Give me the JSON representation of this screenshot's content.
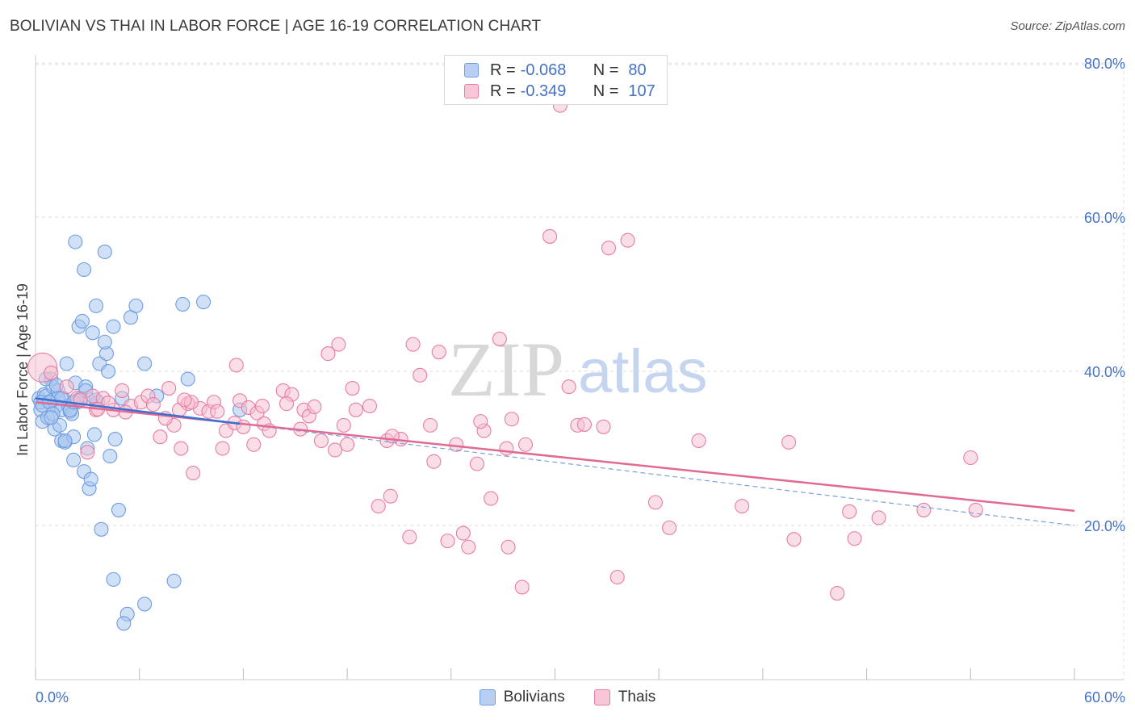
{
  "title": "BOLIVIAN VS THAI IN LABOR FORCE | AGE 16-19 CORRELATION CHART",
  "source": "Source: ZipAtlas.com",
  "watermark": {
    "zip": "ZIP",
    "atlas": "atlas"
  },
  "colors": {
    "bolivian": "#6f9de0",
    "bolivian_fill": "#aac6ef",
    "thai": "#e87da3",
    "thai_fill": "#f6bdd0",
    "axis_text": "#4472c4",
    "grid": "#dddddd"
  },
  "legend": {
    "rows": [
      {
        "r_label": "R =",
        "r_value": "-0.068",
        "n_label": "N =",
        "n_value": "80"
      },
      {
        "r_label": "R =",
        "r_value": "-0.349",
        "n_label": "N =",
        "n_value": "107"
      }
    ]
  },
  "bottom_legend": {
    "bolivians": "Bolivians",
    "thais": "Thais"
  },
  "chart_data": {
    "type": "scatter",
    "title": "BOLIVIAN VS THAI IN LABOR FORCE | AGE 16-19 CORRELATION CHART",
    "xlabel": "",
    "ylabel": "In Labor Force | Age 16-19",
    "xlim": [
      0,
      60
    ],
    "ylim": [
      0,
      82
    ],
    "x_tick_labels": [
      "0.0%",
      "60.0%"
    ],
    "y_ticks": [
      20,
      40,
      60,
      80
    ],
    "y_tick_labels": [
      "20.0%",
      "40.0%",
      "60.0%",
      "80.0%"
    ],
    "grid": true,
    "series": [
      {
        "name": "Bolivians",
        "points": [
          [
            0.2,
            36.5
          ],
          [
            0.3,
            35
          ],
          [
            0.4,
            33.5
          ],
          [
            0.5,
            37
          ],
          [
            0.6,
            36.8
          ],
          [
            0.7,
            34
          ],
          [
            0.8,
            36
          ],
          [
            0.9,
            39
          ],
          [
            1.0,
            38
          ],
          [
            1.0,
            36.3
          ],
          [
            1.1,
            32.5
          ],
          [
            1.2,
            35.5
          ],
          [
            1.3,
            37.5
          ],
          [
            1.4,
            33
          ],
          [
            1.5,
            35
          ],
          [
            1.5,
            31
          ],
          [
            1.6,
            36.5
          ],
          [
            1.7,
            30.8
          ],
          [
            1.8,
            41
          ],
          [
            1.9,
            35.5
          ],
          [
            2.0,
            34.8
          ],
          [
            2.1,
            34.5
          ],
          [
            2.2,
            31.5
          ],
          [
            2.2,
            28.5
          ],
          [
            2.3,
            38.5
          ],
          [
            2.4,
            36
          ],
          [
            2.5,
            45.8
          ],
          [
            2.6,
            36.5
          ],
          [
            2.7,
            46.5
          ],
          [
            2.8,
            27
          ],
          [
            2.9,
            38
          ],
          [
            3.0,
            36.5
          ],
          [
            3.0,
            30
          ],
          [
            3.1,
            24.8
          ],
          [
            3.2,
            26
          ],
          [
            3.3,
            45
          ],
          [
            3.4,
            31.8
          ],
          [
            3.5,
            48.5
          ],
          [
            3.6,
            36
          ],
          [
            3.7,
            41
          ],
          [
            3.8,
            19.5
          ],
          [
            4.0,
            55.5
          ],
          [
            4.1,
            42.3
          ],
          [
            4.2,
            40
          ],
          [
            4.3,
            29
          ],
          [
            4.5,
            45.8
          ],
          [
            4.6,
            31.2
          ],
          [
            4.8,
            22
          ],
          [
            5.0,
            36.5
          ],
          [
            5.5,
            47
          ],
          [
            5.8,
            48.5
          ],
          [
            6.3,
            41
          ],
          [
            7.0,
            36.8
          ],
          [
            8.5,
            48.7
          ],
          [
            8.8,
            39
          ],
          [
            9.7,
            49
          ],
          [
            2.3,
            56.8
          ],
          [
            2.8,
            53.2
          ],
          [
            0.6,
            39
          ],
          [
            0.3,
            36
          ],
          [
            4.0,
            43.8
          ],
          [
            4.5,
            13
          ],
          [
            5.3,
            8.5
          ],
          [
            5.1,
            7.3
          ],
          [
            6.3,
            9.8
          ],
          [
            8.0,
            12.8
          ],
          [
            0.4,
            35.6
          ],
          [
            1.3,
            36.5
          ],
          [
            2.4,
            36.2
          ],
          [
            1.7,
            31
          ],
          [
            11.8,
            35
          ],
          [
            2.9,
            37.5
          ],
          [
            1.2,
            38.2
          ],
          [
            0.8,
            36
          ],
          [
            2.0,
            35
          ],
          [
            1.5,
            36.5
          ],
          [
            1.0,
            34.5
          ],
          [
            2.2,
            36
          ],
          [
            0.9,
            34
          ],
          [
            3.5,
            36.3
          ]
        ]
      },
      {
        "name": "Thais",
        "points": [
          [
            0.4,
            40.5
          ],
          [
            0.9,
            39.8
          ],
          [
            1.8,
            38
          ],
          [
            2.4,
            36.5
          ],
          [
            2.6,
            36.3
          ],
          [
            3.0,
            29.5
          ],
          [
            3.3,
            36.8
          ],
          [
            3.5,
            35
          ],
          [
            3.9,
            36.5
          ],
          [
            4.5,
            35
          ],
          [
            5.0,
            37.5
          ],
          [
            5.5,
            35.5
          ],
          [
            6.1,
            36
          ],
          [
            6.5,
            36.8
          ],
          [
            7.2,
            31.5
          ],
          [
            7.7,
            37.8
          ],
          [
            8.0,
            33
          ],
          [
            8.4,
            30
          ],
          [
            8.8,
            35.8
          ],
          [
            9.1,
            26.8
          ],
          [
            9.5,
            35.2
          ],
          [
            10.0,
            34.8
          ],
          [
            10.3,
            36
          ],
          [
            10.5,
            34.8
          ],
          [
            11.0,
            32.3
          ],
          [
            11.5,
            33.3
          ],
          [
            11.6,
            40.8
          ],
          [
            11.8,
            36.2
          ],
          [
            12.3,
            35.3
          ],
          [
            12.6,
            30.5
          ],
          [
            12.8,
            34.6
          ],
          [
            13.2,
            33.2
          ],
          [
            13.5,
            32.3
          ],
          [
            14.3,
            37.5
          ],
          [
            14.8,
            37
          ],
          [
            15.5,
            35
          ],
          [
            15.8,
            34.2
          ],
          [
            16.5,
            31
          ],
          [
            16.9,
            42.3
          ],
          [
            17.3,
            29.8
          ],
          [
            17.5,
            43.5
          ],
          [
            17.8,
            33
          ],
          [
            18.3,
            37.8
          ],
          [
            18.5,
            35
          ],
          [
            19.3,
            35.5
          ],
          [
            19.8,
            22.5
          ],
          [
            20.3,
            31
          ],
          [
            20.5,
            23.8
          ],
          [
            21.1,
            31.2
          ],
          [
            21.6,
            18.5
          ],
          [
            21.8,
            43.5
          ],
          [
            22.2,
            39.5
          ],
          [
            23.0,
            28.3
          ],
          [
            23.3,
            42.5
          ],
          [
            23.8,
            18
          ],
          [
            24.3,
            30.5
          ],
          [
            24.7,
            19
          ],
          [
            25.0,
            17.2
          ],
          [
            25.9,
            32.3
          ],
          [
            26.3,
            23.5
          ],
          [
            27.2,
            30
          ],
          [
            27.5,
            33.8
          ],
          [
            27.3,
            17.2
          ],
          [
            28.1,
            12
          ],
          [
            28.3,
            30.5
          ],
          [
            29.7,
            57.5
          ],
          [
            30.3,
            74.5
          ],
          [
            30.8,
            38
          ],
          [
            31.3,
            33
          ],
          [
            32.8,
            32.8
          ],
          [
            33.1,
            56
          ],
          [
            33.6,
            13.3
          ],
          [
            34.2,
            57
          ],
          [
            35.8,
            23
          ],
          [
            36.6,
            19.7
          ],
          [
            38.3,
            31
          ],
          [
            40.8,
            22.5
          ],
          [
            43.5,
            30.8
          ],
          [
            43.8,
            18.2
          ],
          [
            46.3,
            11.2
          ],
          [
            47.0,
            21.8
          ],
          [
            47.3,
            18.3
          ],
          [
            48.7,
            21
          ],
          [
            51.3,
            22
          ],
          [
            54.0,
            28.8
          ],
          [
            54.3,
            22
          ],
          [
            10.8,
            30
          ],
          [
            8.3,
            35
          ],
          [
            13.1,
            35.5
          ],
          [
            9.0,
            36
          ],
          [
            5.2,
            34.7
          ],
          [
            6.8,
            35.7
          ],
          [
            26.8,
            44.2
          ],
          [
            31.7,
            33.1
          ],
          [
            12.0,
            32.8
          ],
          [
            14.5,
            35.8
          ],
          [
            18.0,
            30.5
          ],
          [
            22.8,
            33
          ],
          [
            25.5,
            28
          ],
          [
            20.6,
            31.6
          ],
          [
            15.3,
            32.5
          ],
          [
            16.1,
            35.4
          ],
          [
            8.6,
            36.3
          ],
          [
            7.5,
            33.9
          ],
          [
            4.2,
            35.9
          ],
          [
            3.6,
            35.1
          ],
          [
            25.7,
            33.5
          ]
        ]
      }
    ],
    "trend_lines": [
      {
        "series": "Bolivians",
        "x": [
          0,
          11.8
        ],
        "y": [
          36.5,
          33.2
        ],
        "extended": {
          "x": [
            11.8,
            60
          ],
          "y": [
            33.2,
            20.0
          ]
        }
      },
      {
        "series": "Thais",
        "x": [
          0,
          60
        ],
        "y": [
          36.0,
          21.9
        ]
      }
    ]
  }
}
